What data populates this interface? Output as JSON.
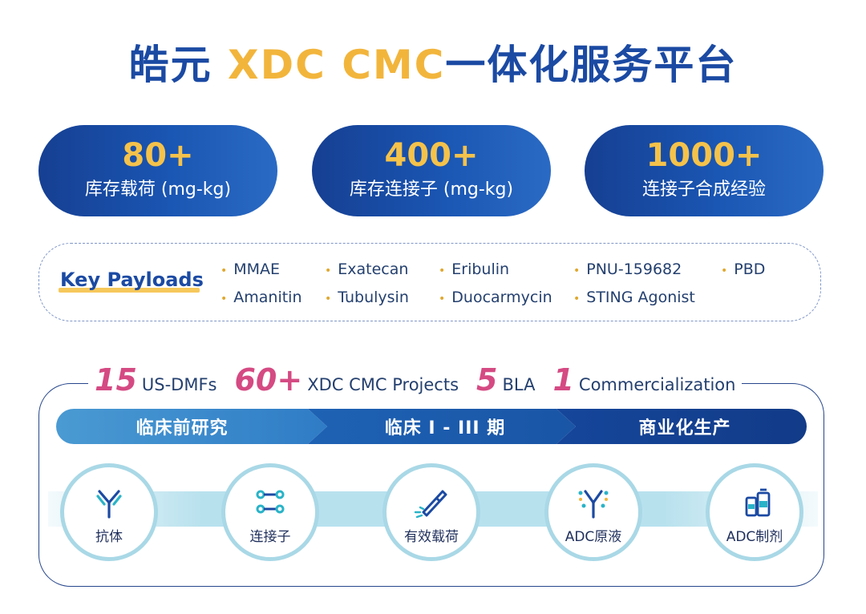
{
  "title": {
    "part1": "皓元 ",
    "highlight": "XDC CMC",
    "part2": "一体化服务平台"
  },
  "stats": [
    {
      "value": "80+",
      "label": "库存载荷 (mg-kg)"
    },
    {
      "value": "400+",
      "label": "库存连接子 (mg-kg)"
    },
    {
      "value": "1000+",
      "label": "连接子合成经验"
    }
  ],
  "payloads": {
    "heading": "Key Payloads",
    "items": [
      "MMAE",
      "Exatecan",
      "Eribulin",
      "PNU-159682",
      "PBD",
      "Amanitin",
      "Tubulysin",
      "Duocarmycin",
      "STING Agonist"
    ]
  },
  "metrics": [
    {
      "value": "15",
      "label": "US-DMFs"
    },
    {
      "value": "60+",
      "label": "XDC CMC Projects"
    },
    {
      "value": "5",
      "label": "BLA"
    },
    {
      "value": "1",
      "label": "Commercialization"
    }
  ],
  "phases": [
    "临床前研究",
    "临床 I - III 期",
    "商业化生产"
  ],
  "steps": [
    {
      "label": "抗体",
      "icon": "antibody-icon"
    },
    {
      "label": "连接子",
      "icon": "linker-icon"
    },
    {
      "label": "有效载荷",
      "icon": "payload-icon"
    },
    {
      "label": "ADC原液",
      "icon": "adc-drug-substance-icon"
    },
    {
      "label": "ADC制剂",
      "icon": "adc-drug-product-icon"
    }
  ],
  "colors": {
    "primary": "#1b4aa3",
    "accent": "#f5c24a",
    "metric": "#d54a83"
  }
}
